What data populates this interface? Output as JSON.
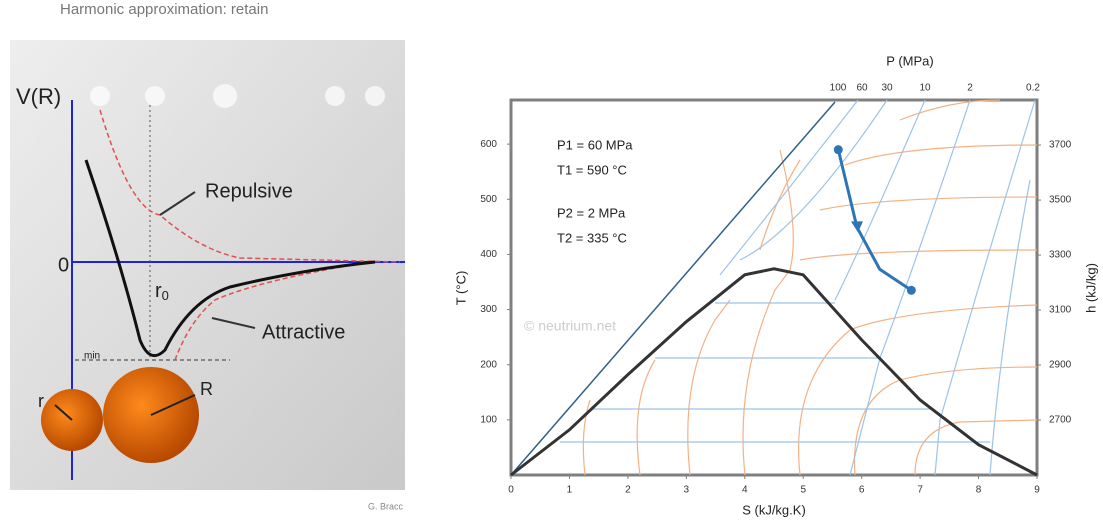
{
  "left_figure": {
    "header": "Harmonic approximation: retain",
    "y_label": "V(R)",
    "zero_label": "0",
    "r0_label": "r",
    "r0_sub": "0",
    "repulsive": "Repulsive",
    "attractive": "Attractive",
    "min_label": "min",
    "big_label": "R",
    "small_label": "r",
    "credit": "G. Bracc"
  },
  "chart_data": {
    "type": "line",
    "x_label": "S (kJ/kg.K)",
    "y_label": "T (°C)",
    "y2_label": "h (kJ/kg)",
    "top_label": "P (MPa)",
    "pressure_labels": [
      100,
      60,
      30,
      10,
      2,
      0.2
    ],
    "annotations": [
      "P1 = 60 MPa",
      "T1 = 590 °C",
      "P2 = 2 MPa",
      "T2 = 335 °C"
    ],
    "watermark": "© neutrium.net",
    "xlim": [
      0,
      9
    ],
    "xticks": [
      0,
      1,
      2,
      3,
      4,
      5,
      6,
      7,
      8,
      9
    ],
    "ylim": [
      0,
      680
    ],
    "yticks": [
      100,
      200,
      300,
      400,
      500,
      600
    ],
    "y2lim": [
      2500,
      3864
    ],
    "y2ticks": [
      2700,
      2900,
      3100,
      3300,
      3500,
      3700
    ],
    "dome": {
      "color": "#333333",
      "x": [
        0,
        1,
        2,
        3,
        4,
        4.5,
        5,
        6,
        7,
        8,
        9
      ],
      "values": [
        0,
        82,
        182,
        278,
        363,
        374,
        363,
        245,
        136,
        55,
        0
      ]
    },
    "process": {
      "color": "#2e75b6",
      "x": [
        5.6,
        5.92,
        6.31,
        6.85
      ],
      "values": [
        590,
        449,
        373,
        335
      ]
    }
  }
}
